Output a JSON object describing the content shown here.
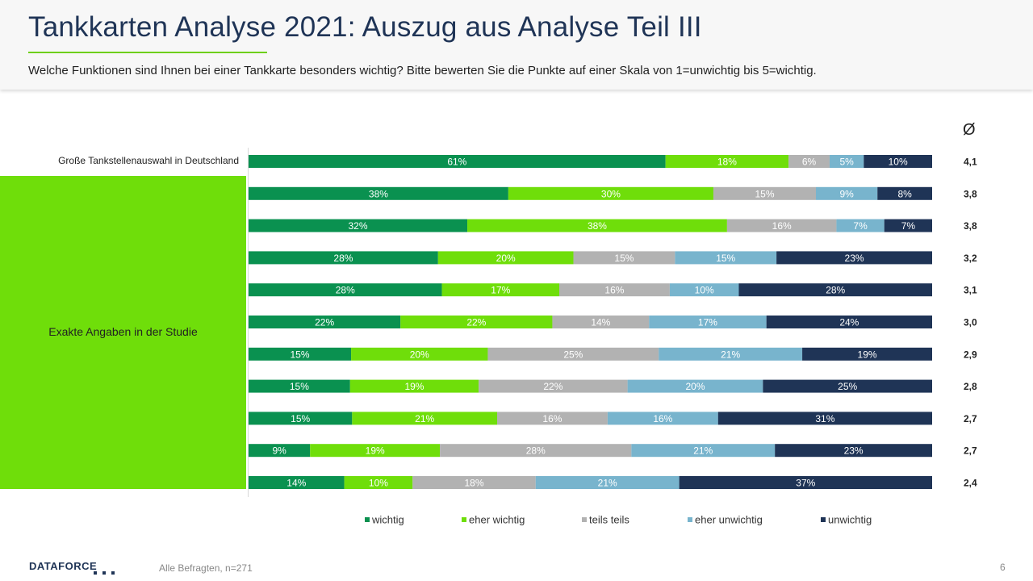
{
  "header": {
    "title": "Tankkarten Analyse 2021: Auszug aus Analyse Teil III",
    "subtitle": "Welche Funktionen sind Ihnen  bei einer Tankkarte  besonders wichtig? Bitte bewerten  Sie die Punkte  auf einer Skala von  1=unwichtig  bis 5=wichtig."
  },
  "labels": {
    "first": "Große Tankstellenauswahl in Deutschland",
    "group": "Exakte Angaben in der Studie",
    "avg_symbol": "Ø"
  },
  "footer": {
    "source": "Alle Befragten,  n=271",
    "page": "6",
    "logo": "DATAFORCE"
  },
  "chart_data": {
    "type": "bar",
    "orientation": "horizontal",
    "stacked": "100%",
    "categories": [
      "Große Tankstellenauswahl in Deutschland",
      "",
      "",
      "",
      "",
      "",
      "",
      "",
      "",
      "",
      ""
    ],
    "series": [
      {
        "name": "wichtig",
        "color": "#0a9150",
        "values": [
          61,
          38,
          32,
          28,
          28,
          22,
          15,
          15,
          15,
          9,
          14
        ]
      },
      {
        "name": "eher wichtig",
        "color": "#6fde0a",
        "values": [
          18,
          30,
          38,
          20,
          17,
          22,
          20,
          19,
          21,
          19,
          10
        ]
      },
      {
        "name": "teils teils",
        "color": "#b2b2b2",
        "values": [
          6,
          15,
          16,
          15,
          16,
          14,
          25,
          22,
          16,
          28,
          18
        ]
      },
      {
        "name": "eher unwichtig",
        "color": "#78b4cd",
        "values": [
          5,
          9,
          7,
          15,
          10,
          17,
          21,
          20,
          16,
          21,
          21
        ]
      },
      {
        "name": "unwichtig",
        "color": "#1f3456",
        "values": [
          10,
          8,
          7,
          23,
          28,
          24,
          19,
          25,
          31,
          23,
          37
        ]
      }
    ],
    "averages": [
      "4,1",
      "3,8",
      "3,8",
      "3,2",
      "3,1",
      "3,0",
      "2,9",
      "2,8",
      "2,7",
      "2,7",
      "2,4"
    ],
    "legend_position": "bottom",
    "xlim": [
      0,
      100
    ]
  }
}
